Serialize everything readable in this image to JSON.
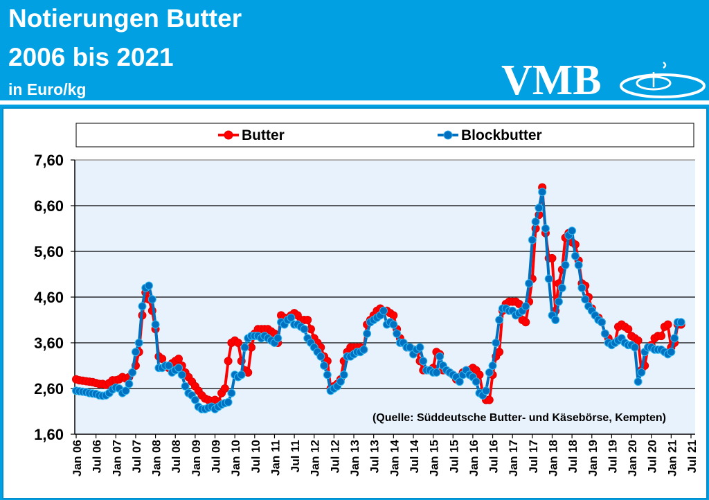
{
  "header": {
    "title_line1": "Notierungen Butter",
    "title_line2": "2006 bis 2021",
    "unit": "in Euro/kg",
    "logo_text": "VMB"
  },
  "colors": {
    "header_bg": "#00a0e3",
    "butter": "#ff0000",
    "blockbutter": "#0070c0",
    "plot_bg": "#e8f2fc"
  },
  "chart_data": {
    "type": "line",
    "legend": [
      "Butter",
      "Blockbutter"
    ],
    "legend_position": "top",
    "grid": true,
    "ylim": [
      1.6,
      7.6
    ],
    "yticks": [
      "1,60",
      "2,60",
      "3,60",
      "4,60",
      "5,60",
      "6,60",
      "7,60"
    ],
    "ytick_values": [
      1.6,
      2.6,
      3.6,
      4.6,
      5.6,
      6.6,
      7.6
    ],
    "xticks": [
      "Jan 06",
      "Jul 06",
      "Jan 07",
      "Jul 07",
      "Jan 08",
      "Jul 08",
      "Jan 09",
      "Jul 09",
      "Jan 10",
      "Jul 10",
      "Jan 11",
      "Jul 11",
      "Jan 12",
      "Jul 12",
      "Jan 13",
      "Jul 13",
      "Jan 14",
      "Jul 14",
      "Jan 15",
      "Jul 15",
      "Jan 16",
      "Jul 16",
      "Jan 17",
      "Jul 17",
      "Jan 18",
      "Jul 18",
      "Jan 19",
      "Jul 19",
      "Jan 20",
      "Jul 20",
      "Jan 21",
      "Jul 21"
    ],
    "x_start": "Jan 06",
    "x_step": "monthly",
    "annotation": "(Quelle: Süddeutsche Butter- und Käsebörse, Kempten)",
    "series": [
      {
        "name": "Butter",
        "values": [
          2.8,
          2.78,
          2.77,
          2.76,
          2.75,
          2.74,
          2.72,
          2.7,
          2.7,
          2.68,
          2.72,
          2.78,
          2.78,
          2.8,
          2.85,
          2.82,
          2.85,
          2.95,
          3.1,
          3.4,
          4.2,
          4.7,
          4.55,
          4.3,
          3.9,
          3.3,
          3.25,
          3.1,
          3.05,
          3.15,
          3.2,
          3.25,
          3.1,
          2.95,
          2.85,
          2.75,
          2.65,
          2.55,
          2.45,
          2.38,
          2.35,
          2.33,
          2.35,
          2.3,
          2.5,
          2.6,
          3.2,
          3.6,
          3.65,
          3.6,
          3.2,
          3.0,
          2.95,
          3.5,
          3.8,
          3.9,
          3.9,
          3.9,
          3.9,
          3.85,
          3.8,
          3.6,
          4.2,
          4.15,
          4.1,
          4.2,
          4.25,
          4.2,
          4.1,
          4.1,
          4.1,
          3.9,
          3.7,
          3.6,
          3.5,
          3.3,
          3.2,
          2.6,
          2.65,
          2.7,
          2.8,
          3.2,
          3.4,
          3.5,
          3.5,
          3.5,
          3.5,
          3.45,
          4.0,
          4.1,
          4.2,
          4.3,
          4.35,
          4.3,
          4.3,
          4.25,
          4.2,
          3.9,
          3.7,
          3.6,
          3.5,
          3.5,
          3.45,
          3.4,
          3.2,
          3.0,
          3.0,
          3.0,
          3.05,
          3.4,
          3.35,
          3.0,
          3.0,
          2.95,
          2.9,
          2.8,
          2.85,
          2.95,
          3.0,
          3.0,
          3.05,
          3.0,
          2.9,
          2.5,
          2.35,
          2.35,
          2.9,
          3.3,
          3.4,
          4.3,
          4.45,
          4.5,
          4.5,
          4.5,
          4.45,
          4.1,
          4.05,
          4.5,
          5.0,
          6.1,
          6.4,
          7.0,
          6.0,
          5.45,
          5.45,
          4.3,
          4.9,
          5.2,
          5.9,
          6.0,
          5.8,
          5.75,
          5.4,
          4.9,
          4.85,
          4.6,
          4.35,
          4.2,
          4.15,
          4.05,
          3.8,
          3.7,
          3.6,
          3.6,
          3.95,
          4.0,
          3.95,
          3.9,
          3.75,
          3.7,
          3.65,
          3.0,
          3.1,
          3.5,
          3.55,
          3.7,
          3.75,
          3.75,
          3.95,
          4.0,
          3.5,
          3.6,
          4.0,
          4.0
        ]
      },
      {
        "name": "Blockbutter",
        "values": [
          2.55,
          2.54,
          2.53,
          2.52,
          2.5,
          2.49,
          2.48,
          2.45,
          2.44,
          2.45,
          2.5,
          2.58,
          2.62,
          2.6,
          2.5,
          2.55,
          2.7,
          2.95,
          3.4,
          3.6,
          4.4,
          4.8,
          4.85,
          4.55,
          4.0,
          3.05,
          3.05,
          3.1,
          3.1,
          2.95,
          3.0,
          3.05,
          2.9,
          2.65,
          2.5,
          2.45,
          2.35,
          2.2,
          2.15,
          2.15,
          2.18,
          2.2,
          2.15,
          2.2,
          2.25,
          2.28,
          2.3,
          2.5,
          2.9,
          2.85,
          2.9,
          3.5,
          3.7,
          3.75,
          3.75,
          3.75,
          3.7,
          3.75,
          3.7,
          3.65,
          3.6,
          3.7,
          4.05,
          4.0,
          4.1,
          4.15,
          4.0,
          4.0,
          3.95,
          3.9,
          3.7,
          3.6,
          3.5,
          3.4,
          3.3,
          3.1,
          2.9,
          2.55,
          2.6,
          2.65,
          2.75,
          2.9,
          3.3,
          3.3,
          3.35,
          3.4,
          3.4,
          3.45,
          3.8,
          4.05,
          4.1,
          4.15,
          4.2,
          4.3,
          4.0,
          4.05,
          4.0,
          3.8,
          3.6,
          3.6,
          3.5,
          3.5,
          3.35,
          3.45,
          3.5,
          3.2,
          3.0,
          3.0,
          2.95,
          2.95,
          3.3,
          3.1,
          3.0,
          2.95,
          2.9,
          2.85,
          2.75,
          2.9,
          3.0,
          2.9,
          2.85,
          2.75,
          2.5,
          2.45,
          2.55,
          2.95,
          3.1,
          3.6,
          4.1,
          4.35,
          4.35,
          4.3,
          4.3,
          4.2,
          4.25,
          4.3,
          4.4,
          4.9,
          5.85,
          6.25,
          6.55,
          6.9,
          6.1,
          5.0,
          4.2,
          4.1,
          4.5,
          4.8,
          5.3,
          5.95,
          6.05,
          5.5,
          5.3,
          4.8,
          4.55,
          4.4,
          4.3,
          4.2,
          4.1,
          4.05,
          3.8,
          3.6,
          3.55,
          3.6,
          3.65,
          3.7,
          3.6,
          3.55,
          3.55,
          3.5,
          2.75,
          2.95,
          3.4,
          3.5,
          3.5,
          3.45,
          3.45,
          3.45,
          3.4,
          3.35,
          3.4,
          3.7,
          4.05,
          4.05
        ]
      }
    ]
  }
}
